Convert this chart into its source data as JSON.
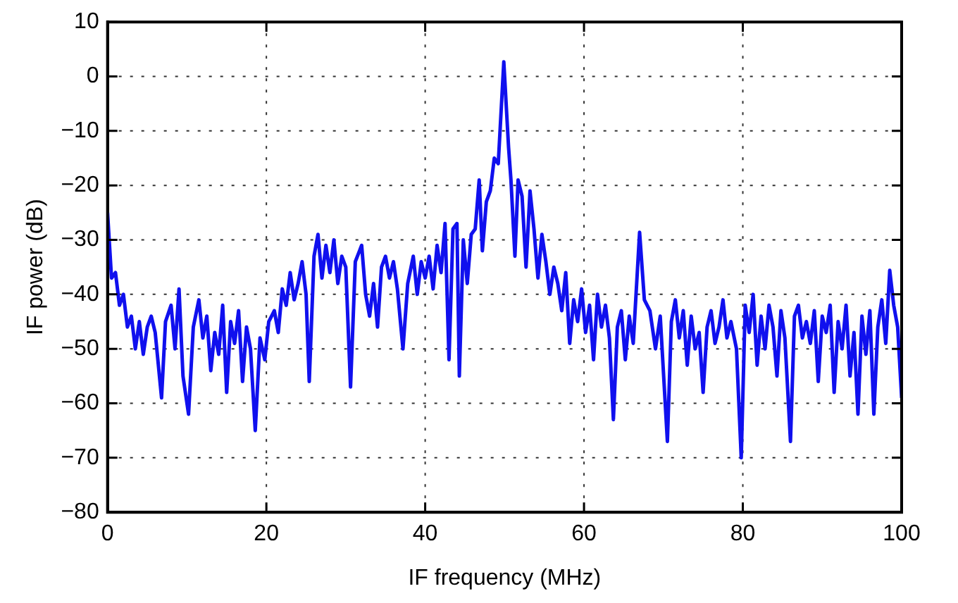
{
  "chart_data": {
    "type": "line",
    "xlabel": "IF frequency (MHz)",
    "ylabel": "IF power (dB)",
    "xlim": [
      0,
      100
    ],
    "xticks": [
      0,
      20,
      40,
      60,
      80,
      100
    ],
    "ylim": [
      -80,
      10
    ],
    "yticks": [
      -80,
      -70,
      -60,
      -50,
      -40,
      -30,
      -20,
      -10,
      0,
      10
    ],
    "grid": true,
    "legend": false,
    "marker": "none",
    "line_style": "solid",
    "x": [
      0,
      0.5,
      1,
      1.5,
      2,
      2.5,
      3,
      3.5,
      4,
      4.5,
      5,
      5.5,
      6,
      6.8,
      7.3,
      8,
      8.5,
      9,
      9.5,
      10.2,
      10.8,
      11.5,
      12,
      12.5,
      13,
      13.5,
      14,
      14.5,
      15,
      15.5,
      16,
      16.5,
      17,
      17.5,
      18,
      18.6,
      19.2,
      19.8,
      20.3,
      21,
      21.5,
      22,
      22.5,
      23,
      23.5,
      24,
      24.5,
      25,
      25.4,
      26,
      26.5,
      27,
      27.5,
      28,
      28.5,
      29,
      29.5,
      30,
      30.6,
      31.2,
      32,
      32.5,
      33,
      33.5,
      34,
      34.5,
      35,
      35.5,
      36,
      36.5,
      37.2,
      37.8,
      38.5,
      39,
      39.5,
      40,
      40.5,
      41,
      41.5,
      42,
      42.5,
      43,
      43.5,
      44,
      44.3,
      44.8,
      45.3,
      45.8,
      46.3,
      46.8,
      47.2,
      47.7,
      48.2,
      48.7,
      49.2,
      49.9,
      50.5,
      50.8,
      51.3,
      51.7,
      52.2,
      52.7,
      53.2,
      53.7,
      54.2,
      54.7,
      55.2,
      55.7,
      56.2,
      56.7,
      57.2,
      57.7,
      58.2,
      58.7,
      59.2,
      59.7,
      60.2,
      60.7,
      61.2,
      61.7,
      62.2,
      62.7,
      63.2,
      63.7,
      64.2,
      64.7,
      65.2,
      65.7,
      66.2,
      67,
      67.6,
      68.3,
      69,
      69.6,
      70.5,
      71,
      71.5,
      72,
      72.5,
      73,
      73.5,
      74,
      74.5,
      75,
      75.5,
      76,
      76.5,
      77,
      77.5,
      78,
      78.5,
      79.2,
      79.8,
      80.3,
      80.8,
      81.3,
      81.8,
      82.3,
      82.8,
      83.3,
      83.8,
      84.3,
      84.8,
      85.3,
      86,
      86.5,
      87,
      87.5,
      88,
      88.5,
      89,
      89.5,
      90,
      90.5,
      91,
      91.5,
      92,
      92.5,
      93,
      93.5,
      94,
      94.5,
      95,
      95.5,
      96,
      96.5,
      97,
      97.5,
      98,
      98.5,
      99,
      99.5,
      100
    ],
    "series": [
      {
        "color": "#1010ee",
        "values": [
          -25,
          -37,
          -36,
          -42,
          -40,
          -46,
          -44,
          -50,
          -45,
          -51,
          -46,
          -44,
          -47,
          -59,
          -45,
          -42,
          -50,
          -39,
          -55,
          -62,
          -46,
          -41,
          -48,
          -44,
          -54,
          -47,
          -51,
          -42,
          -58,
          -45,
          -49,
          -43,
          -56,
          -46,
          -50,
          -65,
          -48,
          -52,
          -45,
          -43,
          -47,
          -39,
          -42,
          -36,
          -41,
          -38,
          -34,
          -40,
          -56,
          -33,
          -29,
          -37,
          -31,
          -36,
          -30,
          -38,
          -33,
          -35,
          -57,
          -34,
          -31,
          -40,
          -44,
          -38,
          -46,
          -35,
          -33,
          -37,
          -34,
          -39,
          -50,
          -38,
          -33,
          -40,
          -34,
          -37,
          -33,
          -39,
          -31,
          -36,
          -27,
          -52,
          -28,
          -27,
          -55,
          -30,
          -38,
          -29,
          -28,
          -19,
          -32,
          -23,
          -21,
          -15,
          -16,
          2.7,
          -13,
          -19,
          -33,
          -19,
          -22,
          -35,
          -21,
          -28,
          -37,
          -29,
          -34,
          -40,
          -35,
          -38,
          -43,
          -36,
          -49,
          -41,
          -45,
          -39,
          -47,
          -42,
          -52,
          -40,
          -46,
          -42,
          -48,
          -63,
          -46,
          -43,
          -52,
          -44,
          -49,
          -28.6,
          -41,
          -43,
          -50,
          -44,
          -67,
          -45,
          -41,
          -48,
          -43,
          -53,
          -44,
          -50,
          -47,
          -58,
          -46,
          -43,
          -49,
          -46,
          -41,
          -48,
          -45,
          -50,
          -70,
          -42,
          -47,
          -40,
          -53,
          -44,
          -50,
          -42,
          -46,
          -55,
          -43,
          -48,
          -67,
          -44,
          -42,
          -48,
          -45,
          -49,
          -43,
          -56,
          -44,
          -47,
          -42,
          -58,
          -45,
          -50,
          -42,
          -55,
          -47,
          -62,
          -44,
          -51,
          -43,
          -62,
          -46,
          -41,
          -49,
          -35.6,
          -42,
          -46,
          -59
        ]
      }
    ]
  }
}
